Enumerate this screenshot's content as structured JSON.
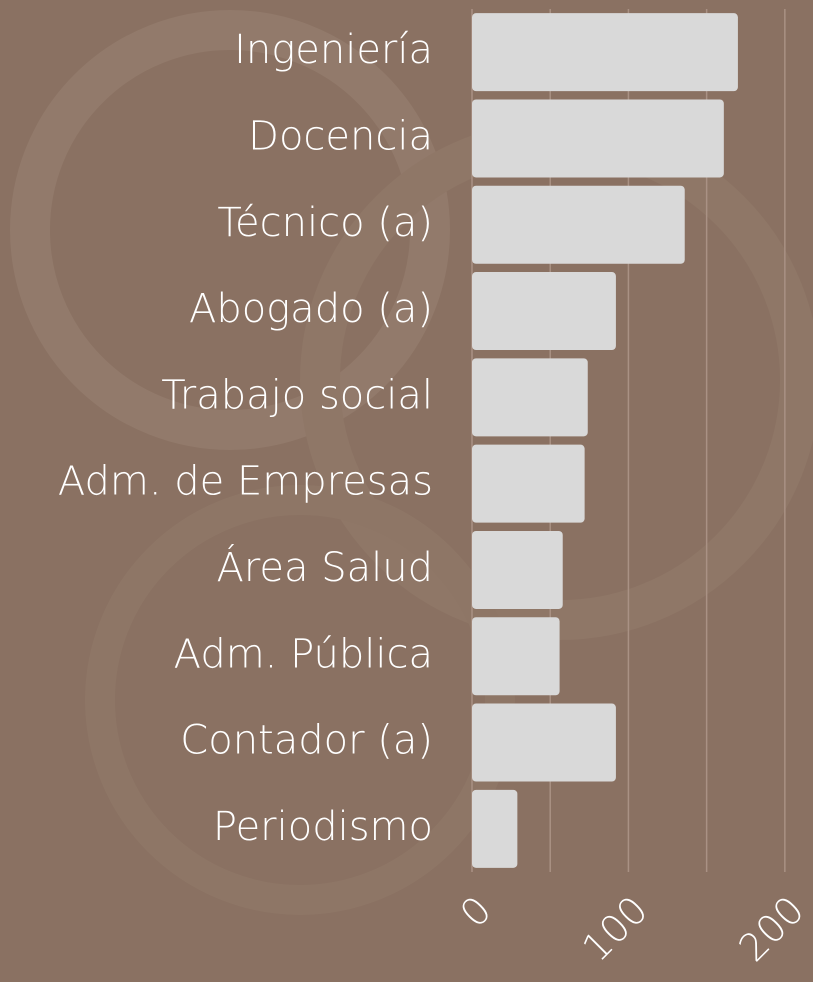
{
  "chart_data": {
    "type": "bar",
    "orientation": "horizontal",
    "categories": [
      "Ingeniería",
      "Docencia",
      "Técnico (a)",
      "Abogado (a)",
      "Trabajo social",
      "Adm. de Empresas",
      "Área Salud",
      "Adm. Pública",
      "Contador (a)",
      "Periodismo"
    ],
    "values": [
      170,
      161,
      136,
      92,
      74,
      72,
      58,
      56,
      92,
      29
    ],
    "color": "#d9d9d9",
    "xlim": [
      0,
      218
    ],
    "xticks": [
      0,
      100,
      200
    ],
    "minor_xticks": [
      50,
      150
    ],
    "grid": true
  }
}
